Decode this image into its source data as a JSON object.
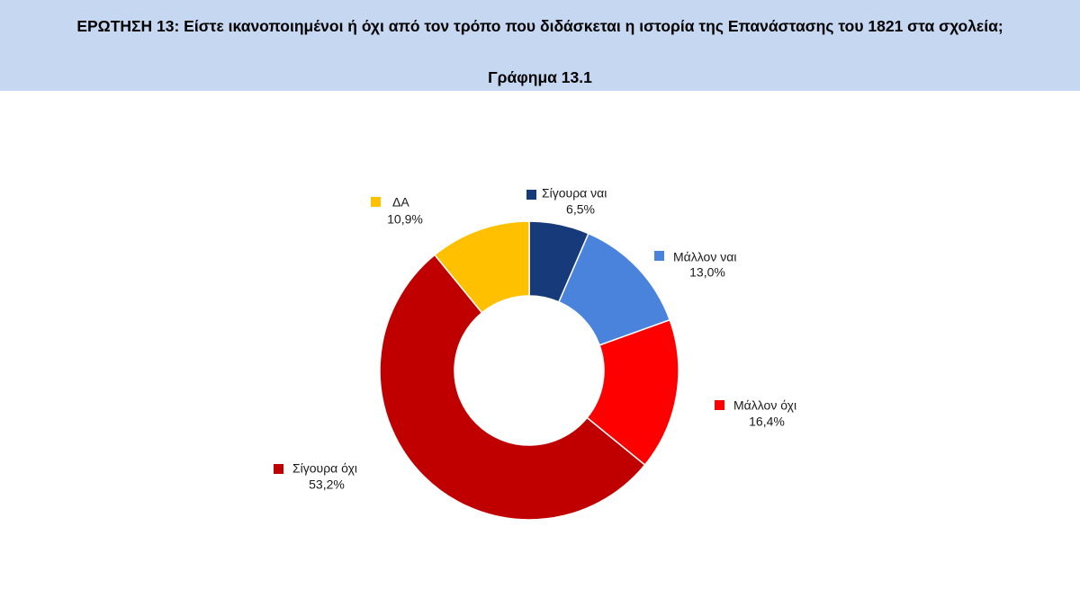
{
  "header": {
    "question": "ΕΡΩΤΗΣΗ 13: Είστε ικανοποιημένοι ή όχι από τον τρόπο που διδάσκεται η ιστορία της Επανάστασης του 1821 στα σχολεία;",
    "subtitle": "Γράφημα 13.1"
  },
  "chart_data": {
    "type": "pie",
    "donut": true,
    "start_angle_deg": 0,
    "direction": "clockwise",
    "categories": [
      "Σίγουρα ναι",
      "Μάλλον ναι",
      "Μάλλον όχι",
      "Σίγουρα όχι",
      "ΔΑ"
    ],
    "values": [
      6.5,
      13.0,
      16.4,
      53.2,
      10.9
    ],
    "value_labels": [
      "6,5%",
      "13,0%",
      "16,4%",
      "53,2%",
      "10,9%"
    ],
    "colors": [
      "#173a7a",
      "#4a83dc",
      "#ff0000",
      "#c00000",
      "#ffc000"
    ],
    "title": "",
    "legend": "data-labels"
  }
}
